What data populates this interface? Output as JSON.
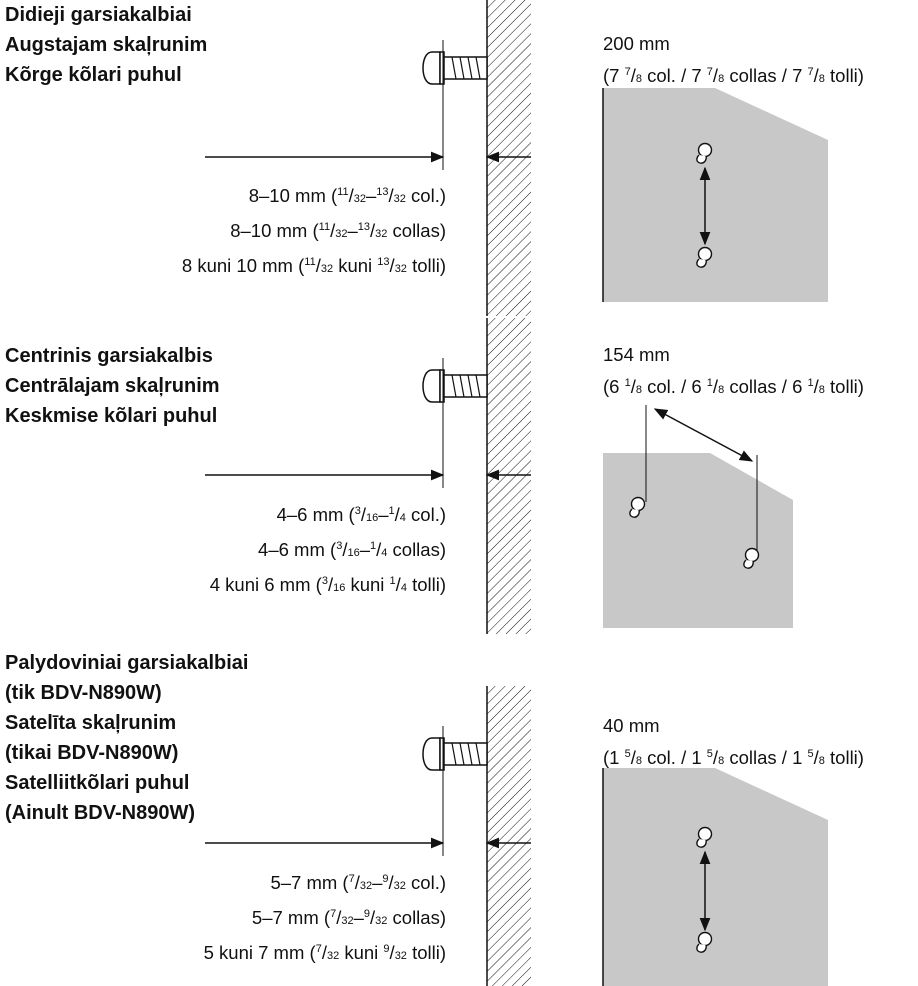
{
  "sections": [
    {
      "heading": [
        "Didieji garsiakalbiai",
        "Augstajam skaļrunim",
        "Kõrge kõlari puhul"
      ],
      "dims": [
        {
          "a": "8–10 mm (",
          "n1": "11",
          "d1": "32",
          "m": "–",
          "n2": "13",
          "d2": "32",
          "z": " col.)"
        },
        {
          "a": "8–10 mm (",
          "n1": "11",
          "d1": "32",
          "m": "–",
          "n2": "13",
          "d2": "32",
          "z": " collas)"
        },
        {
          "a": "8 kuni 10 mm (",
          "n1": "11",
          "d1": "32",
          "m": " kuni ",
          "n2": "13",
          "d2": "32",
          "z": " tolli)"
        }
      ],
      "spacing_mm": "200 mm",
      "spacing_in": {
        "w": "7",
        "n": "7",
        "d": "8"
      }
    },
    {
      "heading": [
        "Centrinis garsiakalbis",
        "Centrālajam skaļrunim",
        "Keskmise kõlari puhul"
      ],
      "dims": [
        {
          "a": "4–6 mm (",
          "n1": "3",
          "d1": "16",
          "m": "–",
          "n2": "1",
          "d2": "4",
          "z": " col.)"
        },
        {
          "a": "4–6 mm (",
          "n1": "3",
          "d1": "16",
          "m": "–",
          "n2": "1",
          "d2": "4",
          "z": " collas)"
        },
        {
          "a": "4 kuni 6 mm (",
          "n1": "3",
          "d1": "16",
          "m": " kuni ",
          "n2": "1",
          "d2": "4",
          "z": " tolli)"
        }
      ],
      "spacing_mm": "154 mm",
      "spacing_in": {
        "w": "6",
        "n": "1",
        "d": "8"
      }
    },
    {
      "heading": [
        "Palydoviniai garsiakalbiai",
        "(tik BDV-N890W)",
        "Satelīta skaļrunim",
        "(tikai BDV-N890W)",
        "Satelliitkõlari puhul",
        "(Ainult BDV-N890W)"
      ],
      "dims": [
        {
          "a": "5–7 mm (",
          "n1": "7",
          "d1": "32",
          "m": "–",
          "n2": "9",
          "d2": "32",
          "z": " col.)"
        },
        {
          "a": "5–7 mm (",
          "n1": "7",
          "d1": "32",
          "m": "–",
          "n2": "9",
          "d2": "32",
          "z": " collas)"
        },
        {
          "a": "5 kuni 7 mm (",
          "n1": "7",
          "d1": "32",
          "m": " kuni ",
          "n2": "9",
          "d2": "32",
          "z": " tolli)"
        }
      ],
      "spacing_mm": "40 mm",
      "spacing_in": {
        "w": "1",
        "n": "5",
        "d": "8"
      }
    }
  ],
  "units": {
    "col": " col.",
    "collas": " collas",
    "tolli": " tolli"
  },
  "colors": {
    "panel": "#c8c8c8",
    "ink": "#111111"
  }
}
